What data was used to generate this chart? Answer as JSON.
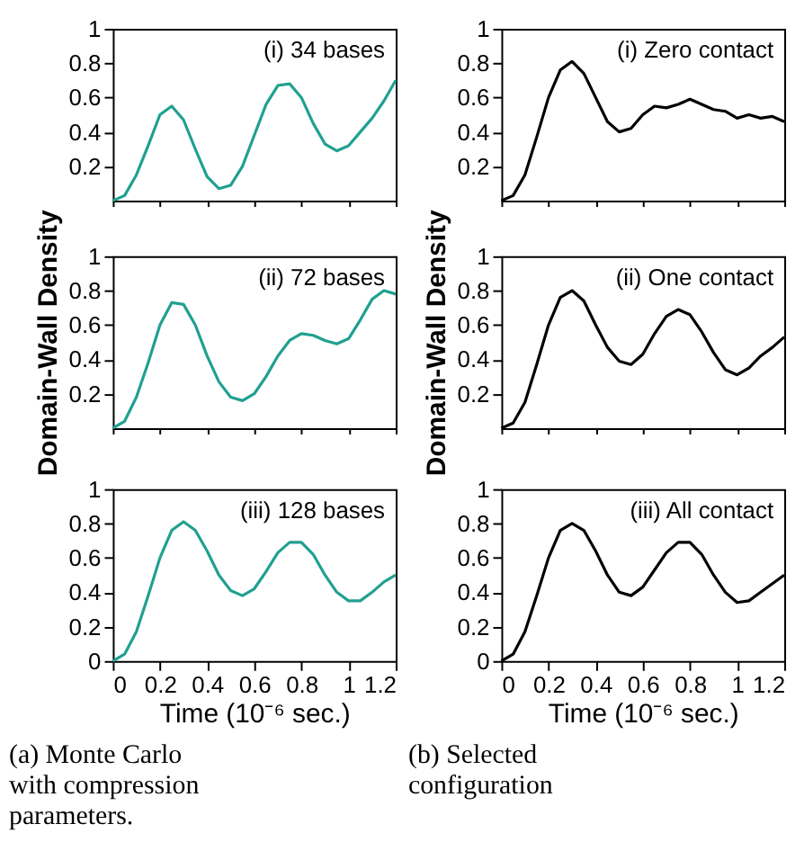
{
  "chart_data": [
    {
      "type": "line",
      "annotations": [
        "(i) 34 bases"
      ],
      "x": [
        0,
        0.05,
        0.1,
        0.15,
        0.2,
        0.25,
        0.3,
        0.35,
        0.4,
        0.45,
        0.5,
        0.55,
        0.6,
        0.65,
        0.7,
        0.75,
        0.8,
        0.85,
        0.9,
        0.95,
        1.0,
        1.05,
        1.1,
        1.15,
        1.2
      ],
      "series": [
        {
          "color": "#20a090",
          "values": [
            0.0,
            0.03,
            0.15,
            0.32,
            0.5,
            0.55,
            0.47,
            0.3,
            0.14,
            0.07,
            0.09,
            0.2,
            0.38,
            0.56,
            0.67,
            0.68,
            0.6,
            0.45,
            0.33,
            0.29,
            0.32,
            0.4,
            0.48,
            0.58,
            0.7
          ]
        }
      ],
      "xlim": [
        0,
        1.2
      ],
      "ylim": [
        0,
        1
      ],
      "xticks": [
        0,
        0.2,
        0.4,
        0.6,
        0.8,
        1,
        1.2
      ],
      "yticks": [
        0.2,
        0.4,
        0.6,
        0.8,
        1
      ],
      "tick_labels": "y",
      "grid": false,
      "legend": false,
      "marker": "none",
      "line_style": "solid"
    },
    {
      "type": "line",
      "annotations": [
        "(ii) 72 bases"
      ],
      "ylabel": "Domain-Wall Density",
      "x": [
        0,
        0.05,
        0.1,
        0.15,
        0.2,
        0.25,
        0.3,
        0.35,
        0.4,
        0.45,
        0.5,
        0.55,
        0.6,
        0.65,
        0.7,
        0.75,
        0.8,
        0.85,
        0.9,
        0.95,
        1.0,
        1.05,
        1.1,
        1.15,
        1.2
      ],
      "series": [
        {
          "color": "#20a090",
          "values": [
            0.0,
            0.04,
            0.18,
            0.38,
            0.6,
            0.73,
            0.72,
            0.6,
            0.42,
            0.27,
            0.18,
            0.16,
            0.2,
            0.3,
            0.42,
            0.51,
            0.55,
            0.54,
            0.51,
            0.49,
            0.52,
            0.63,
            0.75,
            0.8,
            0.78
          ]
        }
      ],
      "xlim": [
        0,
        1.2
      ],
      "ylim": [
        0,
        1
      ],
      "xticks": [
        0,
        0.2,
        0.4,
        0.6,
        0.8,
        1,
        1.2
      ],
      "yticks": [
        0.2,
        0.4,
        0.6,
        0.8,
        1
      ],
      "tick_labels": "y",
      "grid": false,
      "legend": false,
      "marker": "none",
      "line_style": "solid"
    },
    {
      "type": "line",
      "annotations": [
        "(iii) 128 bases",
        "(a) Monte Carlo with compression parameters."
      ],
      "xlabel": "Time (10⁻⁶ sec.)",
      "x": [
        0,
        0.05,
        0.1,
        0.15,
        0.2,
        0.25,
        0.3,
        0.35,
        0.4,
        0.45,
        0.5,
        0.55,
        0.6,
        0.65,
        0.7,
        0.75,
        0.8,
        0.85,
        0.9,
        0.95,
        1.0,
        1.05,
        1.1,
        1.15,
        1.2
      ],
      "series": [
        {
          "color": "#20a090",
          "values": [
            0.0,
            0.04,
            0.17,
            0.38,
            0.6,
            0.76,
            0.81,
            0.76,
            0.64,
            0.5,
            0.41,
            0.38,
            0.42,
            0.52,
            0.63,
            0.69,
            0.69,
            0.62,
            0.5,
            0.4,
            0.35,
            0.35,
            0.4,
            0.46,
            0.5
          ]
        }
      ],
      "xlim": [
        0,
        1.2
      ],
      "ylim": [
        0,
        1
      ],
      "xticks": [
        0,
        0.2,
        0.4,
        0.6,
        0.8,
        1,
        1.2
      ],
      "yticks": [
        0,
        0.2,
        0.4,
        0.6,
        0.8,
        1
      ],
      "grid": false,
      "legend": false,
      "marker": "none",
      "line_style": "solid"
    },
    {
      "type": "line",
      "annotations": [
        "(i) Zero contact"
      ],
      "x": [
        0,
        0.05,
        0.1,
        0.15,
        0.2,
        0.25,
        0.3,
        0.35,
        0.4,
        0.45,
        0.5,
        0.55,
        0.6,
        0.65,
        0.7,
        0.75,
        0.8,
        0.85,
        0.9,
        0.95,
        1.0,
        1.05,
        1.1,
        1.15,
        1.2
      ],
      "series": [
        {
          "color": "#000000",
          "values": [
            0.0,
            0.03,
            0.15,
            0.37,
            0.6,
            0.76,
            0.81,
            0.74,
            0.6,
            0.46,
            0.4,
            0.42,
            0.5,
            0.55,
            0.54,
            0.56,
            0.59,
            0.56,
            0.53,
            0.52,
            0.48,
            0.5,
            0.48,
            0.49,
            0.46
          ]
        }
      ],
      "xlim": [
        0,
        1.2
      ],
      "ylim": [
        0,
        1
      ],
      "xticks": [
        0,
        0.2,
        0.4,
        0.6,
        0.8,
        1,
        1.2
      ],
      "yticks": [
        0.2,
        0.4,
        0.6,
        0.8,
        1
      ],
      "tick_labels": "y",
      "grid": false,
      "legend": false,
      "marker": "none",
      "line_style": "solid"
    },
    {
      "type": "line",
      "annotations": [
        "(ii) One contact"
      ],
      "ylabel": "Domain-Wall Density",
      "x": [
        0,
        0.05,
        0.1,
        0.15,
        0.2,
        0.25,
        0.3,
        0.35,
        0.4,
        0.45,
        0.5,
        0.55,
        0.6,
        0.65,
        0.7,
        0.75,
        0.8,
        0.85,
        0.9,
        0.95,
        1.0,
        1.05,
        1.1,
        1.15,
        1.2
      ],
      "series": [
        {
          "color": "#000000",
          "values": [
            0.0,
            0.03,
            0.15,
            0.37,
            0.6,
            0.76,
            0.8,
            0.74,
            0.6,
            0.47,
            0.39,
            0.37,
            0.43,
            0.55,
            0.65,
            0.69,
            0.66,
            0.56,
            0.44,
            0.34,
            0.31,
            0.35,
            0.42,
            0.47,
            0.53
          ]
        }
      ],
      "xlim": [
        0,
        1.2
      ],
      "ylim": [
        0,
        1
      ],
      "xticks": [
        0,
        0.2,
        0.4,
        0.6,
        0.8,
        1,
        1.2
      ],
      "yticks": [
        0.2,
        0.4,
        0.6,
        0.8,
        1
      ],
      "tick_labels": "y",
      "grid": false,
      "legend": false,
      "marker": "none",
      "line_style": "solid"
    },
    {
      "type": "line",
      "annotations": [
        "(iii) All contact",
        "(b) Selected configuration"
      ],
      "xlabel": "Time (10⁻⁶ sec.)",
      "x": [
        0,
        0.05,
        0.1,
        0.15,
        0.2,
        0.25,
        0.3,
        0.35,
        0.4,
        0.45,
        0.5,
        0.55,
        0.6,
        0.65,
        0.7,
        0.75,
        0.8,
        0.85,
        0.9,
        0.95,
        1.0,
        1.05,
        1.1,
        1.15,
        1.2
      ],
      "series": [
        {
          "color": "#000000",
          "values": [
            0.0,
            0.04,
            0.17,
            0.38,
            0.6,
            0.76,
            0.8,
            0.76,
            0.64,
            0.5,
            0.4,
            0.38,
            0.43,
            0.53,
            0.63,
            0.69,
            0.69,
            0.62,
            0.5,
            0.4,
            0.34,
            0.35,
            0.4,
            0.45,
            0.5
          ]
        }
      ],
      "xlim": [
        0,
        1.2
      ],
      "ylim": [
        0,
        1
      ],
      "xticks": [
        0,
        0.2,
        0.4,
        0.6,
        0.8,
        1,
        1.2
      ],
      "yticks": [
        0,
        0.2,
        0.4,
        0.6,
        0.8,
        1
      ],
      "grid": false,
      "legend": false,
      "marker": "none",
      "line_style": "solid"
    }
  ]
}
